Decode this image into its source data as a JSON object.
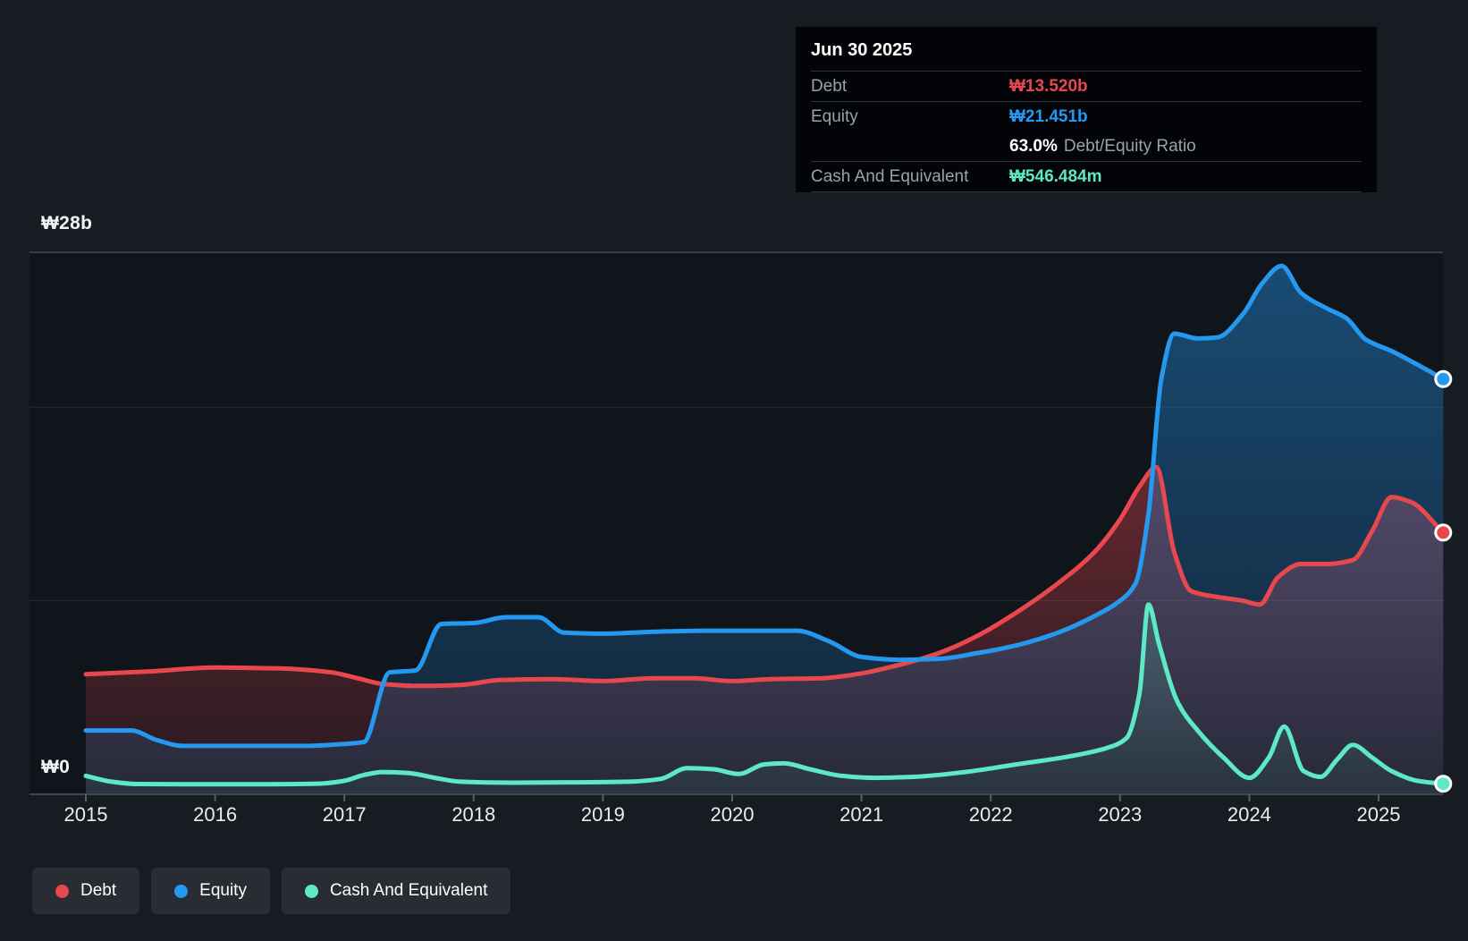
{
  "y_axis": {
    "top_label": "₩28b",
    "bottom_label": "₩0"
  },
  "x_axis": {
    "years": [
      "2015",
      "2016",
      "2017",
      "2018",
      "2019",
      "2020",
      "2021",
      "2022",
      "2023",
      "2024",
      "2025"
    ]
  },
  "tooltip": {
    "title": "Jun 30 2025",
    "debt_label": "Debt",
    "debt_value": "₩13.520b",
    "equity_label": "Equity",
    "equity_value": "₩21.451b",
    "ratio_value": "63.0%",
    "ratio_label": "Debt/Equity Ratio",
    "cash_label": "Cash And Equivalent",
    "cash_value": "₩546.484m"
  },
  "legend": {
    "items": [
      {
        "label": "Debt",
        "color": "#e8474e"
      },
      {
        "label": "Equity",
        "color": "#2598ef"
      },
      {
        "label": "Cash And Equivalent",
        "color": "#5de8c6"
      }
    ]
  },
  "chart_data": {
    "type": "area",
    "title": "Debt to Equity history",
    "unit": "KRW billions",
    "x_range": [
      2015.0,
      2025.5
    ],
    "ylim": [
      0,
      28
    ],
    "grid_values_b": [
      28,
      20,
      10
    ],
    "axis_zero_b": 0,
    "legend_position": "bottom-left",
    "last_point": {
      "date": "Jun 30 2025",
      "debt_b": 13.52,
      "equity_b": 21.451,
      "debt_equity_ratio_pct": 63.0,
      "cash_and_equivalent_m": 546.484
    },
    "series": [
      {
        "name": "Debt",
        "color": "#e8474e",
        "fill_top": "rgba(232,71,78,0.40)",
        "fill_bottom": "rgba(232,71,78,0.10)",
        "points": [
          [
            2015.0,
            6.2
          ],
          [
            2015.5,
            6.35
          ],
          [
            2016.0,
            6.55
          ],
          [
            2016.5,
            6.5
          ],
          [
            2016.9,
            6.3
          ],
          [
            2017.1,
            6.0
          ],
          [
            2017.3,
            5.7
          ],
          [
            2017.6,
            5.6
          ],
          [
            2017.9,
            5.65
          ],
          [
            2018.2,
            5.9
          ],
          [
            2018.6,
            5.95
          ],
          [
            2019.0,
            5.85
          ],
          [
            2019.4,
            6.0
          ],
          [
            2019.7,
            6.0
          ],
          [
            2020.0,
            5.85
          ],
          [
            2020.3,
            5.95
          ],
          [
            2020.7,
            6.0
          ],
          [
            2021.0,
            6.25
          ],
          [
            2021.3,
            6.7
          ],
          [
            2021.6,
            7.3
          ],
          [
            2021.9,
            8.2
          ],
          [
            2022.2,
            9.4
          ],
          [
            2022.5,
            10.8
          ],
          [
            2022.8,
            12.5
          ],
          [
            2023.0,
            14.2
          ],
          [
            2023.15,
            15.9
          ],
          [
            2023.28,
            16.9
          ],
          [
            2023.42,
            12.5
          ],
          [
            2023.55,
            10.5
          ],
          [
            2023.75,
            10.2
          ],
          [
            2023.95,
            10.0
          ],
          [
            2024.08,
            9.8
          ],
          [
            2024.22,
            11.2
          ],
          [
            2024.4,
            11.9
          ],
          [
            2024.6,
            11.9
          ],
          [
            2024.8,
            12.1
          ],
          [
            2024.95,
            13.6
          ],
          [
            2025.1,
            15.35
          ],
          [
            2025.25,
            15.1
          ],
          [
            2025.5,
            13.52
          ]
        ]
      },
      {
        "name": "Equity",
        "color": "#2598ef",
        "fill_top": "rgba(37,152,239,0.42)",
        "fill_bottom": "rgba(37,152,239,0.12)",
        "points": [
          [
            2015.0,
            3.3
          ],
          [
            2015.35,
            3.3
          ],
          [
            2015.55,
            2.8
          ],
          [
            2015.75,
            2.5
          ],
          [
            2016.2,
            2.5
          ],
          [
            2016.7,
            2.5
          ],
          [
            2017.0,
            2.6
          ],
          [
            2017.15,
            2.7
          ],
          [
            2017.35,
            6.3
          ],
          [
            2017.55,
            6.4
          ],
          [
            2017.75,
            8.8
          ],
          [
            2018.0,
            8.85
          ],
          [
            2018.25,
            9.15
          ],
          [
            2018.5,
            9.15
          ],
          [
            2018.7,
            8.35
          ],
          [
            2019.0,
            8.3
          ],
          [
            2019.4,
            8.4
          ],
          [
            2019.8,
            8.45
          ],
          [
            2020.2,
            8.45
          ],
          [
            2020.5,
            8.45
          ],
          [
            2020.75,
            7.9
          ],
          [
            2021.0,
            7.1
          ],
          [
            2021.3,
            6.95
          ],
          [
            2021.6,
            7.0
          ],
          [
            2021.9,
            7.3
          ],
          [
            2022.2,
            7.7
          ],
          [
            2022.5,
            8.3
          ],
          [
            2022.8,
            9.2
          ],
          [
            2023.0,
            10.0
          ],
          [
            2023.12,
            10.9
          ],
          [
            2023.22,
            14.5
          ],
          [
            2023.32,
            21.5
          ],
          [
            2023.42,
            23.8
          ],
          [
            2023.6,
            23.55
          ],
          [
            2023.75,
            23.6
          ],
          [
            2023.95,
            24.8
          ],
          [
            2024.1,
            26.4
          ],
          [
            2024.25,
            27.3
          ],
          [
            2024.4,
            25.9
          ],
          [
            2024.6,
            25.1
          ],
          [
            2024.75,
            24.6
          ],
          [
            2024.9,
            23.5
          ],
          [
            2025.1,
            22.9
          ],
          [
            2025.3,
            22.2
          ],
          [
            2025.5,
            21.451
          ]
        ]
      },
      {
        "name": "Cash And Equivalent",
        "color": "#5de8c6",
        "fill_top": "rgba(93,232,198,0.20)",
        "fill_bottom": "rgba(93,232,198,0.05)",
        "points": [
          [
            2015.0,
            0.95
          ],
          [
            2015.2,
            0.65
          ],
          [
            2015.4,
            0.53
          ],
          [
            2015.8,
            0.52
          ],
          [
            2016.3,
            0.52
          ],
          [
            2016.8,
            0.55
          ],
          [
            2017.0,
            0.7
          ],
          [
            2017.15,
            1.0
          ],
          [
            2017.3,
            1.15
          ],
          [
            2017.5,
            1.1
          ],
          [
            2017.7,
            0.85
          ],
          [
            2017.9,
            0.65
          ],
          [
            2018.3,
            0.6
          ],
          [
            2018.8,
            0.62
          ],
          [
            2019.2,
            0.65
          ],
          [
            2019.45,
            0.8
          ],
          [
            2019.65,
            1.35
          ],
          [
            2019.85,
            1.3
          ],
          [
            2020.05,
            1.05
          ],
          [
            2020.25,
            1.55
          ],
          [
            2020.4,
            1.6
          ],
          [
            2020.6,
            1.3
          ],
          [
            2020.85,
            0.95
          ],
          [
            2021.1,
            0.85
          ],
          [
            2021.4,
            0.9
          ],
          [
            2021.8,
            1.15
          ],
          [
            2022.2,
            1.55
          ],
          [
            2022.6,
            1.95
          ],
          [
            2022.9,
            2.4
          ],
          [
            2023.05,
            2.9
          ],
          [
            2023.15,
            5.2
          ],
          [
            2023.22,
            9.8
          ],
          [
            2023.3,
            7.8
          ],
          [
            2023.45,
            4.7
          ],
          [
            2023.6,
            3.3
          ],
          [
            2023.8,
            1.9
          ],
          [
            2024.0,
            0.85
          ],
          [
            2024.15,
            1.9
          ],
          [
            2024.27,
            3.5
          ],
          [
            2024.42,
            1.2
          ],
          [
            2024.55,
            0.9
          ],
          [
            2024.68,
            1.8
          ],
          [
            2024.8,
            2.55
          ],
          [
            2024.95,
            1.9
          ],
          [
            2025.1,
            1.2
          ],
          [
            2025.3,
            0.7
          ],
          [
            2025.5,
            0.546
          ]
        ]
      }
    ]
  }
}
